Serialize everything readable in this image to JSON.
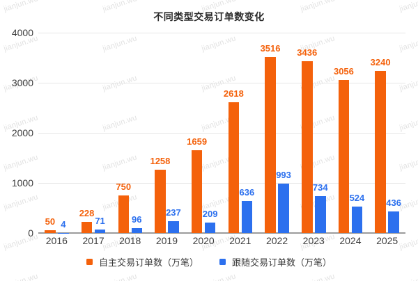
{
  "watermark": {
    "text": "jianjun.wu"
  },
  "chart_data": {
    "type": "bar",
    "title": "不同类型交易订单数变化",
    "categories": [
      "2016",
      "2017",
      "2018",
      "2019",
      "2020",
      "2021",
      "2022",
      "2023",
      "2024",
      "2025"
    ],
    "series": [
      {
        "name": "自主交易订单数（万笔）",
        "color": "#F4610B",
        "values": [
          50,
          228,
          750,
          1258,
          1659,
          2618,
          3516,
          3436,
          3056,
          3240
        ]
      },
      {
        "name": "跟随交易订单数（万笔）",
        "color": "#2C70EE",
        "values": [
          4,
          71,
          96,
          237,
          209,
          636,
          993,
          734,
          524,
          436
        ]
      }
    ],
    "xlabel": "",
    "ylabel": "",
    "ylim": [
      0,
      4000
    ],
    "yticks": [
      0,
      1000,
      2000,
      3000,
      4000
    ],
    "grid": true,
    "data_labels": true,
    "legend_position": "bottom"
  },
  "colors": {
    "background": "#ffffff",
    "gridline": "#e6e6e6",
    "axis_baseline": "#9b9b9b",
    "axis_text": "#3d3d3d",
    "title_text": "#2b2b2b",
    "watermark_text": "#e2e2e2"
  }
}
